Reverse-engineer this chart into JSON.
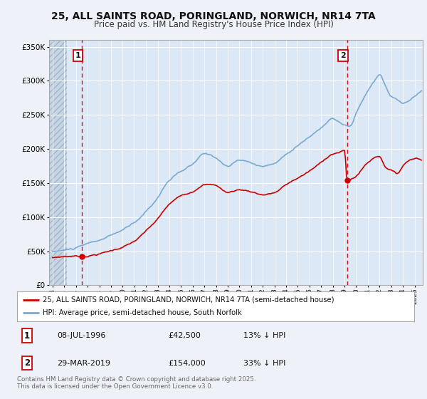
{
  "title_line1": "25, ALL SAINTS ROAD, PORINGLAND, NORWICH, NR14 7TA",
  "title_line2": "Price paid vs. HM Land Registry's House Price Index (HPI)",
  "bg_color": "#eef2f8",
  "plot_bg_color": "#dce8f5",
  "grid_color": "#ffffff",
  "red_line_color": "#cc0000",
  "blue_line_color": "#7aaad0",
  "ylim": [
    0,
    360000
  ],
  "yticks": [
    0,
    50000,
    100000,
    150000,
    200000,
    250000,
    300000,
    350000
  ],
  "ytick_labels": [
    "£0",
    "£50K",
    "£100K",
    "£150K",
    "£200K",
    "£250K",
    "£300K",
    "£350K"
  ],
  "xlim_start": 1993.7,
  "xlim_end": 2025.7,
  "sale1_x": 1996.52,
  "sale1_y": 42500,
  "sale1_label": "1",
  "sale2_x": 2019.24,
  "sale2_y": 154000,
  "sale2_label": "2",
  "legend_line1": "25, ALL SAINTS ROAD, PORINGLAND, NORWICH, NR14 7TA (semi-detached house)",
  "legend_line2": "HPI: Average price, semi-detached house, South Norfolk",
  "table_row1": [
    "1",
    "08-JUL-1996",
    "£42,500",
    "13% ↓ HPI"
  ],
  "table_row2": [
    "2",
    "29-MAR-2019",
    "£154,000",
    "33% ↓ HPI"
  ],
  "footnote": "Contains HM Land Registry data © Crown copyright and database right 2025.\nThis data is licensed under the Open Government Licence v3.0."
}
